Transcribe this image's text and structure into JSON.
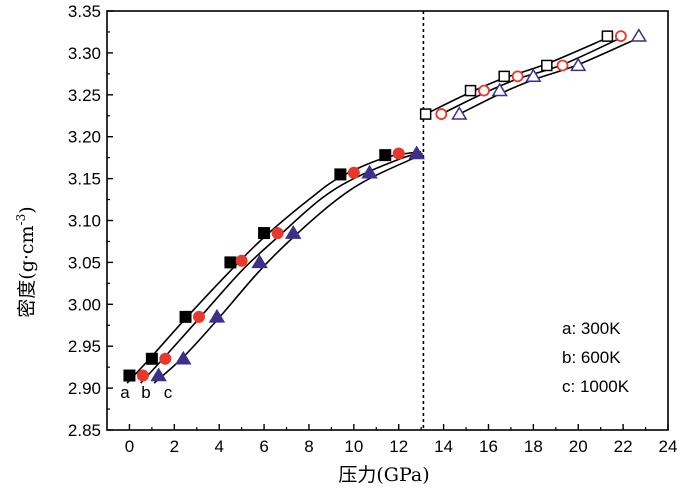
{
  "chart_data": {
    "type": "scatter",
    "title": "",
    "xlabel": "压力(GPa)",
    "ylabel_main": "密度(g·cm",
    "ylabel_sup": "-3",
    "ylabel_close": ")",
    "xlim": [
      -1,
      24
    ],
    "ylim": [
      2.85,
      3.35
    ],
    "xticks": [
      0,
      2,
      4,
      6,
      8,
      10,
      12,
      14,
      16,
      18,
      20,
      22,
      24
    ],
    "yticks": [
      2.85,
      2.9,
      2.95,
      3.0,
      3.05,
      3.1,
      3.15,
      3.2,
      3.25,
      3.3,
      3.35
    ],
    "ytick_labels": [
      "2.85",
      "2.90",
      "2.95",
      "3.00",
      "3.05",
      "3.10",
      "3.15",
      "3.20",
      "3.25",
      "3.30",
      "3.35"
    ],
    "divider_x": 13.1,
    "legend": [
      "a: 300K",
      "b: 600K",
      "c: 1000K"
    ],
    "legend_position": "bottom-right",
    "curve_tags": [
      "a",
      "b",
      "c"
    ],
    "series": [
      {
        "name": "a: 300K",
        "marker": "square",
        "color": "#000000",
        "low": {
          "x": [
            0.0,
            1.0,
            2.5,
            4.5,
            6.0,
            9.4,
            11.4
          ],
          "y": [
            2.915,
            2.935,
            2.985,
            3.05,
            3.085,
            3.155,
            3.178
          ]
        },
        "high": {
          "x": [
            13.2,
            15.2,
            16.7,
            18.6,
            21.3
          ],
          "y": [
            3.227,
            3.255,
            3.272,
            3.285,
            3.32
          ]
        }
      },
      {
        "name": "b: 600K",
        "marker": "circle",
        "color": "#e8382b",
        "low": {
          "x": [
            0.6,
            1.6,
            3.1,
            5.0,
            6.6,
            10.0,
            12.0
          ],
          "y": [
            2.915,
            2.935,
            2.985,
            3.052,
            3.085,
            3.157,
            3.18
          ]
        },
        "high": {
          "x": [
            13.9,
            15.8,
            17.3,
            19.3,
            21.9
          ],
          "y": [
            3.227,
            3.255,
            3.272,
            3.285,
            3.32
          ]
        }
      },
      {
        "name": "c: 1000K",
        "marker": "triangle",
        "color": "#3d2f8a",
        "low": {
          "x": [
            1.3,
            2.4,
            3.9,
            5.8,
            7.3,
            10.7,
            12.8
          ],
          "y": [
            2.915,
            2.935,
            2.985,
            3.05,
            3.085,
            3.157,
            3.18
          ]
        },
        "high": {
          "x": [
            14.7,
            16.5,
            18.0,
            20.0,
            22.7
          ],
          "y": [
            3.227,
            3.255,
            3.272,
            3.285,
            3.32
          ]
        }
      }
    ],
    "fit_curves": [
      {
        "name": "a-low",
        "x": [
          -0.1,
          1.0,
          2.5,
          4.5,
          6.0,
          8.0,
          9.4,
          11.4,
          13.0
        ],
        "y": [
          2.906,
          2.938,
          2.983,
          3.04,
          3.08,
          3.125,
          3.152,
          3.175,
          3.182
        ]
      },
      {
        "name": "b-low",
        "x": [
          0.5,
          1.6,
          3.1,
          5.0,
          6.6,
          8.5,
          10.0,
          12.0,
          13.0
        ],
        "y": [
          2.906,
          2.938,
          2.983,
          3.04,
          3.08,
          3.125,
          3.15,
          3.173,
          3.181
        ]
      },
      {
        "name": "c-low",
        "x": [
          1.1,
          2.4,
          3.9,
          5.8,
          7.3,
          9.2,
          10.7,
          12.8,
          13.05
        ],
        "y": [
          2.906,
          2.937,
          2.981,
          3.04,
          3.08,
          3.124,
          3.15,
          3.176,
          3.18
        ]
      },
      {
        "name": "a-high",
        "x": [
          13.2,
          15.2,
          16.7,
          18.6,
          21.3
        ],
        "y": [
          3.227,
          3.253,
          3.27,
          3.287,
          3.318
        ]
      },
      {
        "name": "b-high",
        "x": [
          13.9,
          15.8,
          17.3,
          19.3,
          21.9
        ],
        "y": [
          3.227,
          3.252,
          3.269,
          3.286,
          3.318
        ]
      },
      {
        "name": "c-high",
        "x": [
          14.7,
          16.5,
          18.0,
          20.0,
          22.7
        ],
        "y": [
          3.227,
          3.251,
          3.268,
          3.286,
          3.318
        ]
      }
    ]
  }
}
